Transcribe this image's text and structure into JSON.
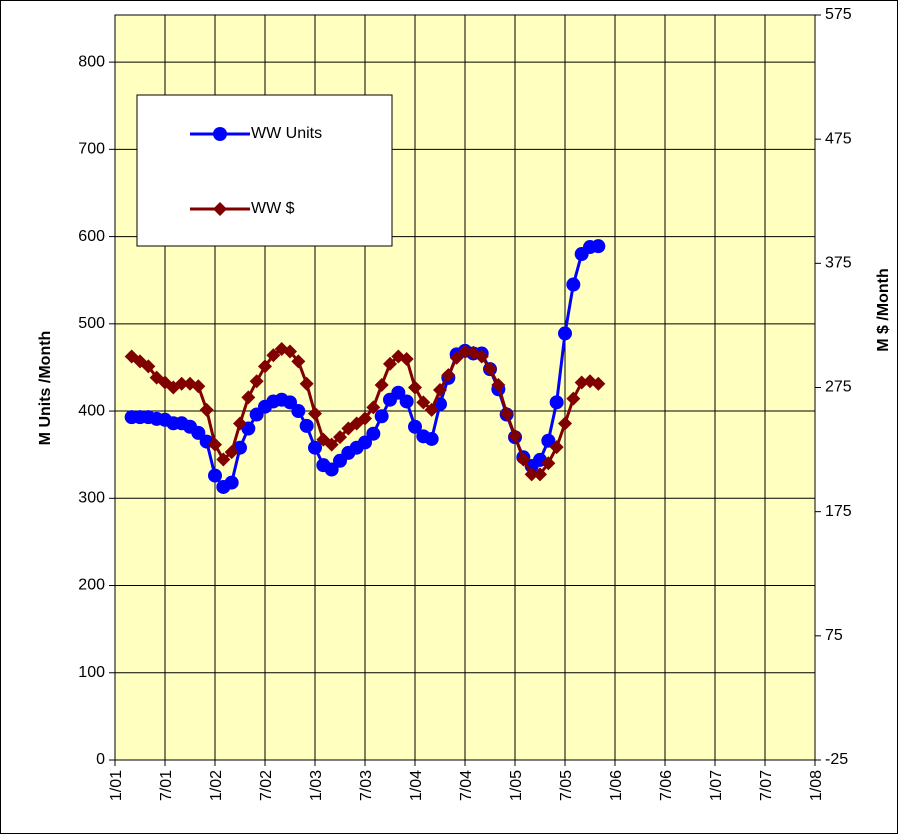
{
  "chart_data": {
    "type": "line",
    "ylabel": "M  Units /Month",
    "y2label": "M $ /Month",
    "x": [
      "2001-03",
      "2001-04",
      "2001-05",
      "2001-06",
      "2001-07",
      "2001-08",
      "2001-09",
      "2001-10",
      "2001-11",
      "2001-12",
      "2002-01",
      "2002-02",
      "2002-03",
      "2002-04",
      "2002-05",
      "2002-06",
      "2002-07",
      "2002-08",
      "2002-09",
      "2002-10",
      "2002-11",
      "2002-12",
      "2003-01",
      "2003-02",
      "2003-03",
      "2003-04",
      "2003-05",
      "2003-06",
      "2003-07",
      "2003-08",
      "2003-09",
      "2003-10",
      "2003-11",
      "2003-12",
      "2004-01",
      "2004-02",
      "2004-03",
      "2004-04",
      "2004-05",
      "2004-06",
      "2004-07",
      "2004-08",
      "2004-09",
      "2004-10",
      "2004-11",
      "2004-12",
      "2005-01",
      "2005-02",
      "2005-03",
      "2005-04",
      "2005-05",
      "2005-06",
      "2005-07",
      "2005-08",
      "2005-09",
      "2005-10",
      "2005-11"
    ],
    "series": [
      {
        "name": "WW Units",
        "color": "#0000ff",
        "marker": "circle",
        "axis": "y",
        "values": [
          393,
          393,
          393,
          391,
          390,
          386,
          386,
          382,
          375,
          365,
          326,
          313,
          318,
          358,
          380,
          396,
          405,
          411,
          413,
          410,
          400,
          383,
          358,
          338,
          333,
          343,
          352,
          358,
          364,
          374,
          394,
          413,
          421,
          411,
          382,
          371,
          368,
          408,
          438,
          465,
          469,
          466,
          466,
          448,
          425,
          396,
          370,
          347,
          337,
          344,
          366,
          410,
          489,
          545,
          580,
          588,
          589
        ]
      },
      {
        "name": "WW $",
        "color": "#800000",
        "marker": "diamond",
        "axis": "y2",
        "values": [
          300,
          296,
          292,
          283,
          279,
          275,
          278,
          278,
          276,
          257,
          229,
          217,
          223,
          246,
          267,
          280,
          292,
          301,
          306,
          304,
          296,
          278,
          254,
          233,
          229,
          235,
          242,
          246,
          250,
          259,
          277,
          294,
          300,
          298,
          275,
          263,
          257,
          273,
          285,
          299,
          304,
          303,
          300,
          290,
          277,
          254,
          236,
          217,
          205,
          205,
          214,
          227,
          246,
          266,
          279,
          280,
          278
        ]
      }
    ],
    "xlim": [
      "2001-01",
      "2008-01"
    ],
    "xticks": [
      {
        "value": "2001-01",
        "label": "1/01"
      },
      {
        "value": "2001-07",
        "label": "7/01"
      },
      {
        "value": "2002-01",
        "label": "1/02"
      },
      {
        "value": "2002-07",
        "label": "7/02"
      },
      {
        "value": "2003-01",
        "label": "1/03"
      },
      {
        "value": "2003-07",
        "label": "7/03"
      },
      {
        "value": "2004-01",
        "label": "1/04"
      },
      {
        "value": "2004-07",
        "label": "7/04"
      },
      {
        "value": "2005-01",
        "label": "1/05"
      },
      {
        "value": "2005-07",
        "label": "7/05"
      },
      {
        "value": "2006-01",
        "label": "1/06"
      },
      {
        "value": "2006-07",
        "label": "7/06"
      },
      {
        "value": "2007-01",
        "label": "1/07"
      },
      {
        "value": "2007-07",
        "label": "7/07"
      },
      {
        "value": "2008-01",
        "label": "1/08"
      }
    ],
    "ylim": [
      0,
      854
    ],
    "yticks": [
      0,
      100,
      200,
      300,
      400,
      500,
      600,
      700,
      800
    ],
    "y2lim": [
      -25,
      575
    ],
    "y2ticks": [
      -25,
      75,
      175,
      275,
      375,
      475,
      575
    ],
    "grid": true,
    "legend": "upper left",
    "background": "#ffffc0"
  }
}
